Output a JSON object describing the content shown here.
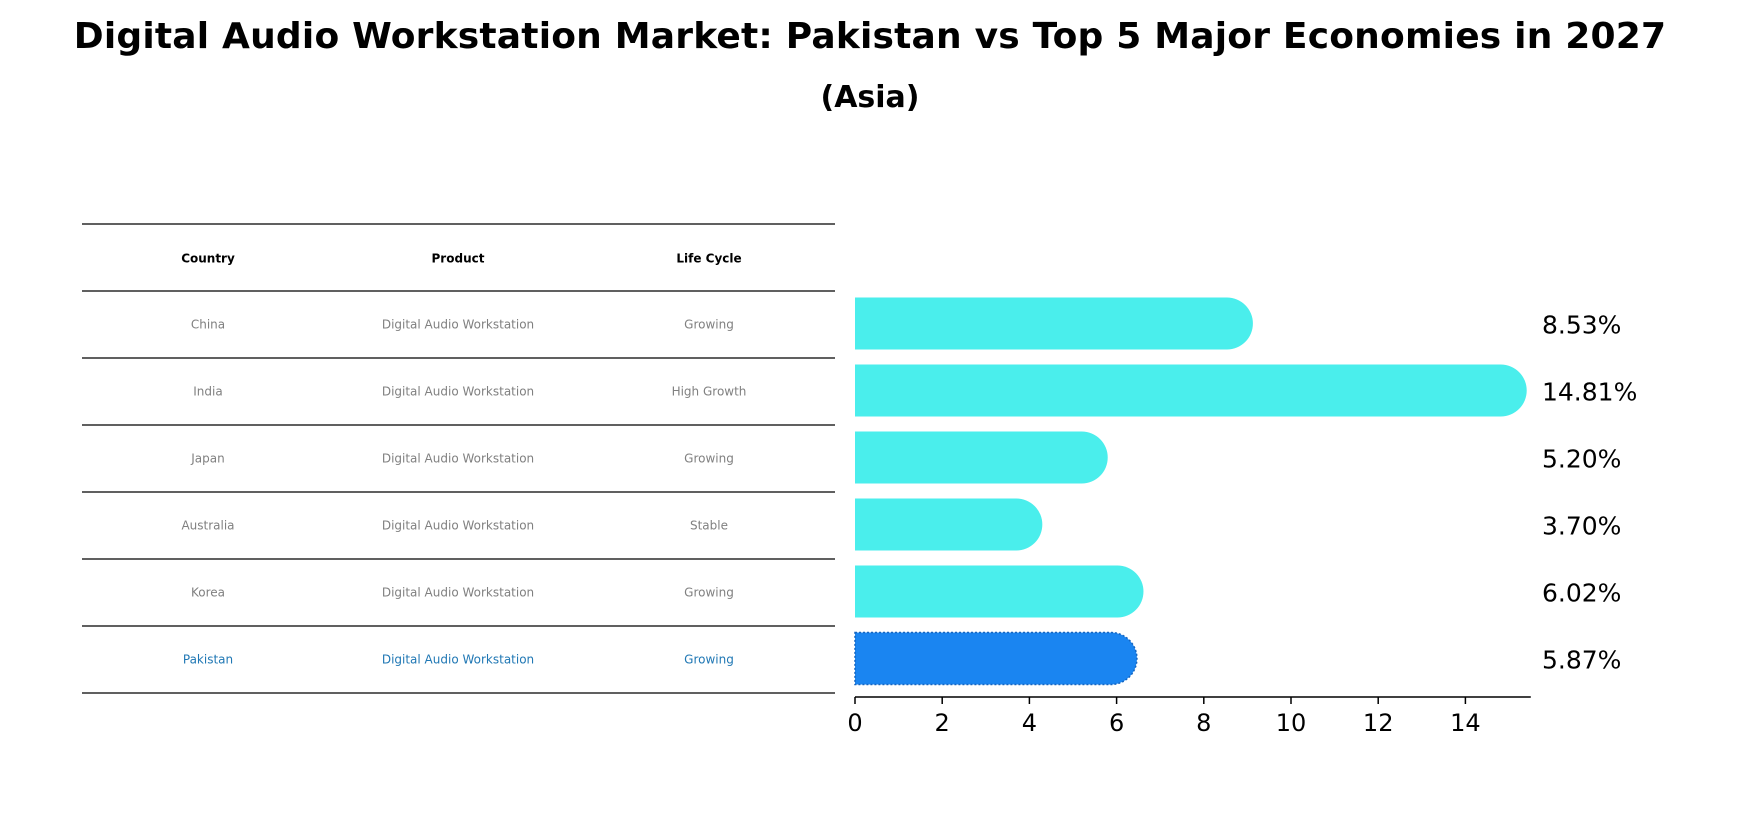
{
  "chart_data": {
    "type": "bar",
    "orientation": "horizontal",
    "title": "Digital Audio Workstation Market: Pakistan vs Top 5 Major Economies in 2027",
    "subtitle": "(Asia)",
    "categories": [
      "China",
      "India",
      "Japan",
      "Australia",
      "Korea",
      "Pakistan"
    ],
    "values": [
      8.53,
      14.81,
      5.2,
      3.7,
      6.02,
      5.87
    ],
    "value_labels": [
      "8.53%",
      "14.81%",
      "5.20%",
      "3.70%",
      "6.02%",
      "5.87%"
    ],
    "highlight": "Pakistan",
    "xlim": [
      0,
      15.5
    ],
    "xticks": [
      0,
      2,
      4,
      6,
      8,
      10,
      12,
      14
    ],
    "xtick_labels": [
      "0",
      "2",
      "4",
      "6",
      "8",
      "10",
      "12",
      "14"
    ],
    "xlabel": "",
    "ylabel": "",
    "grid": false,
    "colors": {
      "bar": "#4aeeec",
      "highlight_bar": "#1a85f1",
      "table_text": "#808080",
      "highlight_text": "#1f77b4"
    }
  },
  "table": {
    "headers": [
      "Country",
      "Product",
      "Life Cycle"
    ],
    "rows": [
      [
        "China",
        "Digital Audio Workstation",
        "Growing"
      ],
      [
        "India",
        "Digital Audio Workstation",
        "High Growth"
      ],
      [
        "Japan",
        "Digital Audio Workstation",
        "Growing"
      ],
      [
        "Australia",
        "Digital Audio Workstation",
        "Stable"
      ],
      [
        "Korea",
        "Digital Audio Workstation",
        "Growing"
      ],
      [
        "Pakistan",
        "Digital Audio Workstation",
        "Growing"
      ]
    ]
  }
}
